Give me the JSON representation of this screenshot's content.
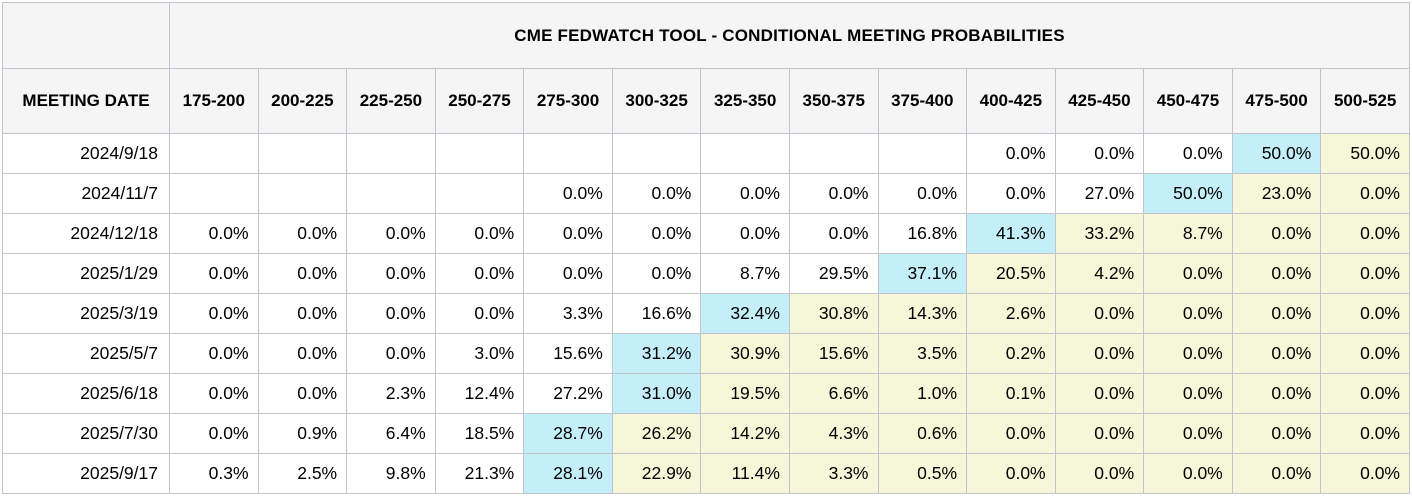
{
  "colors": {
    "modal_cell_cyan": "#c4eef8",
    "above_cell_yellow": "#f6f6d8",
    "header_background": "#f5f5f6",
    "grid_line": "#c3c3cc",
    "text": "#000000",
    "data_cell_background": "#ffffff"
  },
  "chart_data": {
    "type": "table",
    "title": "CME FEDWATCH TOOL - CONDITIONAL MEETING PROBABILITIES",
    "row_header": "MEETING DATE",
    "rate_range_columns": [
      "175-200",
      "200-225",
      "225-250",
      "250-275",
      "275-300",
      "300-325",
      "325-350",
      "350-375",
      "375-400",
      "400-425",
      "425-450",
      "450-475",
      "475-500",
      "500-525"
    ],
    "rows": [
      {
        "date": "2024/9/18",
        "modal_index": 12,
        "values": [
          "",
          "",
          "",
          "",
          "",
          "",
          "",
          "",
          "",
          "0.0%",
          "0.0%",
          "0.0%",
          "50.0%",
          "50.0%"
        ]
      },
      {
        "date": "2024/11/7",
        "modal_index": 11,
        "values": [
          "",
          "",
          "",
          "",
          "0.0%",
          "0.0%",
          "0.0%",
          "0.0%",
          "0.0%",
          "0.0%",
          "27.0%",
          "50.0%",
          "23.0%",
          "0.0%"
        ]
      },
      {
        "date": "2024/12/18",
        "modal_index": 9,
        "values": [
          "0.0%",
          "0.0%",
          "0.0%",
          "0.0%",
          "0.0%",
          "0.0%",
          "0.0%",
          "0.0%",
          "16.8%",
          "41.3%",
          "33.2%",
          "8.7%",
          "0.0%",
          "0.0%"
        ]
      },
      {
        "date": "2025/1/29",
        "modal_index": 8,
        "values": [
          "0.0%",
          "0.0%",
          "0.0%",
          "0.0%",
          "0.0%",
          "0.0%",
          "8.7%",
          "29.5%",
          "37.1%",
          "20.5%",
          "4.2%",
          "0.0%",
          "0.0%",
          "0.0%"
        ]
      },
      {
        "date": "2025/3/19",
        "modal_index": 6,
        "values": [
          "0.0%",
          "0.0%",
          "0.0%",
          "0.0%",
          "3.3%",
          "16.6%",
          "32.4%",
          "30.8%",
          "14.3%",
          "2.6%",
          "0.0%",
          "0.0%",
          "0.0%",
          "0.0%"
        ]
      },
      {
        "date": "2025/5/7",
        "modal_index": 5,
        "values": [
          "0.0%",
          "0.0%",
          "0.0%",
          "3.0%",
          "15.6%",
          "31.2%",
          "30.9%",
          "15.6%",
          "3.5%",
          "0.2%",
          "0.0%",
          "0.0%",
          "0.0%",
          "0.0%"
        ]
      },
      {
        "date": "2025/6/18",
        "modal_index": 5,
        "values": [
          "0.0%",
          "0.0%",
          "2.3%",
          "12.4%",
          "27.2%",
          "31.0%",
          "19.5%",
          "6.6%",
          "1.0%",
          "0.1%",
          "0.0%",
          "0.0%",
          "0.0%",
          "0.0%"
        ]
      },
      {
        "date": "2025/7/30",
        "modal_index": 4,
        "values": [
          "0.0%",
          "0.9%",
          "6.4%",
          "18.5%",
          "28.7%",
          "26.2%",
          "14.2%",
          "4.3%",
          "0.6%",
          "0.0%",
          "0.0%",
          "0.0%",
          "0.0%",
          "0.0%"
        ]
      },
      {
        "date": "2025/9/17",
        "modal_index": 4,
        "values": [
          "0.3%",
          "2.5%",
          "9.8%",
          "21.3%",
          "28.1%",
          "22.9%",
          "11.4%",
          "3.3%",
          "0.5%",
          "0.0%",
          "0.0%",
          "0.0%",
          "0.0%",
          "0.0%"
        ]
      }
    ]
  }
}
